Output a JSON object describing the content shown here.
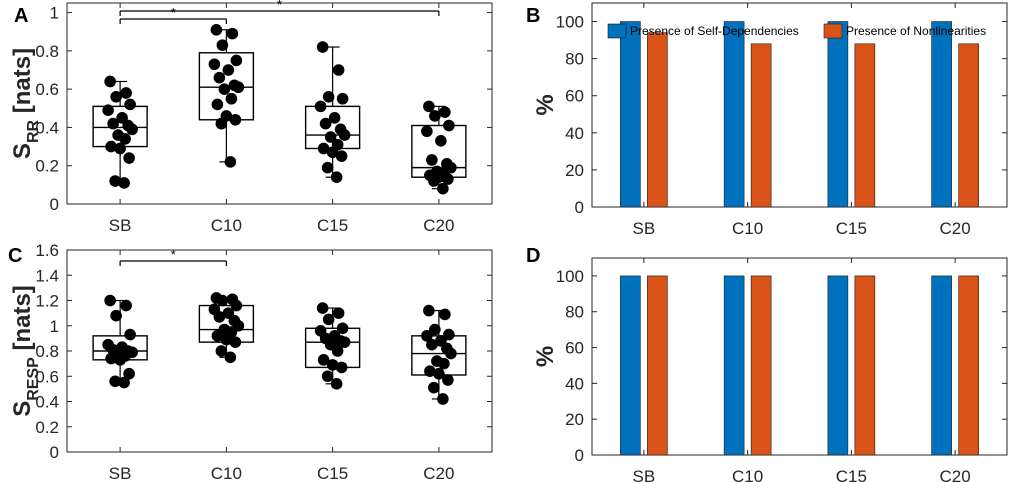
{
  "chart_data": [
    {
      "panel": "A",
      "type": "boxplot",
      "ylabel_main": "S",
      "ylabel_sub": "RR",
      "ylabel_rest": " [nats]",
      "categories": [
        "SB",
        "C10",
        "C15",
        "C20"
      ],
      "ylim": [
        0,
        1.05
      ],
      "yticks": [
        "0",
        "0.2",
        "0.4",
        "0.6",
        "0.8",
        "1"
      ],
      "ytick_values": [
        0,
        0.2,
        0.4,
        0.6,
        0.8,
        1
      ],
      "boxes": [
        {
          "whisker_low": 0.11,
          "q1": 0.3,
          "median": 0.4,
          "q3": 0.51,
          "whisker_high": 0.64
        },
        {
          "whisker_low": 0.22,
          "q1": 0.44,
          "median": 0.61,
          "q3": 0.79,
          "whisker_high": 0.91
        },
        {
          "whisker_low": 0.14,
          "q1": 0.29,
          "median": 0.36,
          "q3": 0.51,
          "whisker_high": 0.82
        },
        {
          "whisker_low": 0.08,
          "q1": 0.14,
          "median": 0.19,
          "q3": 0.41,
          "whisker_high": 0.51
        }
      ],
      "points": [
        [
          0.64,
          0.58,
          0.56,
          0.52,
          0.49,
          0.45,
          0.42,
          0.41,
          0.39,
          0.36,
          0.34,
          0.3,
          0.29,
          0.24,
          0.12,
          0.11
        ],
        [
          0.91,
          0.89,
          0.83,
          0.75,
          0.73,
          0.7,
          0.66,
          0.62,
          0.61,
          0.6,
          0.55,
          0.52,
          0.46,
          0.44,
          0.42,
          0.22
        ],
        [
          0.82,
          0.7,
          0.56,
          0.55,
          0.51,
          0.45,
          0.42,
          0.39,
          0.36,
          0.35,
          0.31,
          0.29,
          0.27,
          0.25,
          0.19,
          0.14
        ],
        [
          0.51,
          0.48,
          0.46,
          0.41,
          0.38,
          0.33,
          0.23,
          0.21,
          0.19,
          0.17,
          0.16,
          0.15,
          0.14,
          0.13,
          0.12,
          0.08
        ]
      ],
      "significance": [
        {
          "from": "SB",
          "to": "C10",
          "label": "*"
        },
        {
          "from": "SB",
          "to": "C20",
          "label": "*"
        }
      ]
    },
    {
      "panel": "B",
      "type": "bar",
      "ylabel": "%",
      "categories": [
        "SB",
        "C10",
        "C15",
        "C20"
      ],
      "ylim": [
        0,
        110
      ],
      "yticks": [
        "0",
        "20",
        "40",
        "60",
        "80",
        "100"
      ],
      "ytick_values": [
        0,
        20,
        40,
        60,
        80,
        100
      ],
      "series": [
        {
          "name": "Presence of Self-Dependencies",
          "color": "#0072BD",
          "values": [
            100,
            100,
            100,
            100
          ]
        },
        {
          "name": "Presence of Nonlinearities",
          "color": "#D95319",
          "values": [
            94,
            88,
            88,
            88
          ]
        }
      ],
      "legend": "top-right"
    },
    {
      "panel": "C",
      "type": "boxplot",
      "ylabel_main": "S",
      "ylabel_sub": "RESP",
      "ylabel_rest": " [nats]",
      "categories": [
        "SB",
        "C10",
        "C15",
        "C20"
      ],
      "ylim": [
        0,
        1.6
      ],
      "yticks": [
        "0",
        "0.2",
        "0.4",
        "0.6",
        "0.8",
        "1",
        "1.2",
        "1.4",
        "1.6"
      ],
      "ytick_values": [
        0,
        0.2,
        0.4,
        0.6,
        0.8,
        1,
        1.2,
        1.4,
        1.6
      ],
      "boxes": [
        {
          "whisker_low": 0.55,
          "q1": 0.73,
          "median": 0.8,
          "q3": 0.92,
          "whisker_high": 1.2
        },
        {
          "whisker_low": 0.75,
          "q1": 0.87,
          "median": 0.97,
          "q3": 1.16,
          "whisker_high": 1.22
        },
        {
          "whisker_low": 0.54,
          "q1": 0.67,
          "median": 0.87,
          "q3": 0.98,
          "whisker_high": 1.14
        },
        {
          "whisker_low": 0.42,
          "q1": 0.61,
          "median": 0.78,
          "q3": 0.92,
          "whisker_high": 1.12
        }
      ],
      "points": [
        [
          1.2,
          1.16,
          1.08,
          0.93,
          0.85,
          0.83,
          0.81,
          0.8,
          0.79,
          0.77,
          0.76,
          0.74,
          0.73,
          0.62,
          0.56,
          0.55
        ],
        [
          1.22,
          1.21,
          1.2,
          1.16,
          1.13,
          1.1,
          1.07,
          1.04,
          1.0,
          0.97,
          0.95,
          0.92,
          0.89,
          0.87,
          0.8,
          0.75
        ],
        [
          1.14,
          1.1,
          1.05,
          0.98,
          0.96,
          0.92,
          0.9,
          0.88,
          0.87,
          0.85,
          0.8,
          0.73,
          0.69,
          0.67,
          0.6,
          0.54
        ],
        [
          1.12,
          1.09,
          0.97,
          0.93,
          0.92,
          0.88,
          0.85,
          0.82,
          0.78,
          0.72,
          0.7,
          0.64,
          0.62,
          0.57,
          0.51,
          0.42
        ]
      ],
      "significance": [
        {
          "from": "SB",
          "to": "C10",
          "label": "*"
        }
      ]
    },
    {
      "panel": "D",
      "type": "bar",
      "ylabel": "%",
      "categories": [
        "SB",
        "C10",
        "C15",
        "C20"
      ],
      "ylim": [
        0,
        110
      ],
      "yticks": [
        "0",
        "20",
        "40",
        "60",
        "80",
        "100"
      ],
      "ytick_values": [
        0,
        20,
        40,
        60,
        80,
        100
      ],
      "series": [
        {
          "name": "Presence of Self-Dependencies",
          "color": "#0072BD",
          "values": [
            100,
            100,
            100,
            100
          ]
        },
        {
          "name": "Presence of Nonlinearities",
          "color": "#D95319",
          "values": [
            100,
            100,
            100,
            100
          ]
        }
      ]
    }
  ]
}
